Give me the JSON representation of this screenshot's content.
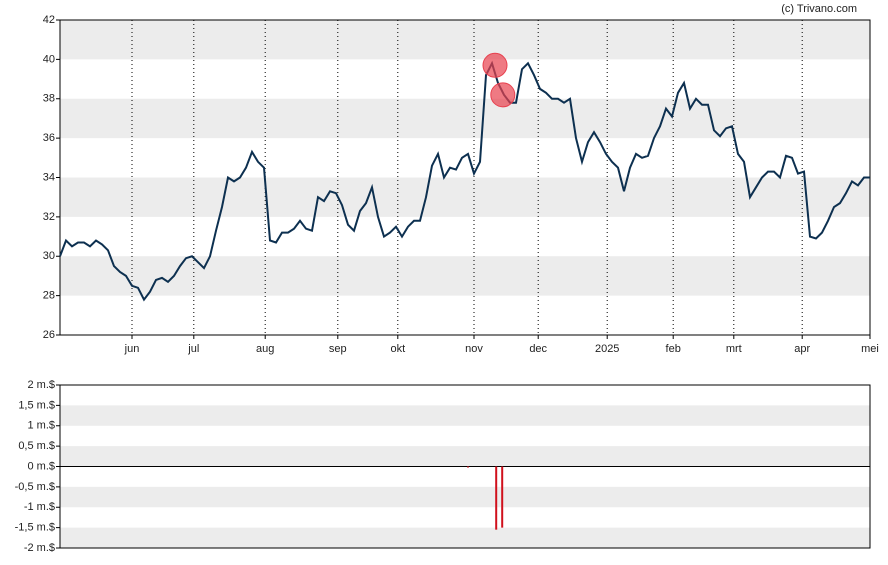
{
  "credit": "(c) Trivano.com",
  "chart_data": [
    {
      "type": "line",
      "color": "#0d3050",
      "xlim": [
        0,
        135
      ],
      "xticks": [
        {
          "value": 12,
          "label": "jun"
        },
        {
          "value": 22.3,
          "label": "jul"
        },
        {
          "value": 34.2,
          "label": "aug"
        },
        {
          "value": 46.3,
          "label": "sep"
        },
        {
          "value": 56.3,
          "label": "okt"
        },
        {
          "value": 69,
          "label": "nov"
        },
        {
          "value": 79.7,
          "label": "dec"
        },
        {
          "value": 91.2,
          "label": "2025"
        },
        {
          "value": 102.2,
          "label": "feb"
        },
        {
          "value": 112.3,
          "label": "mrt"
        },
        {
          "value": 123.7,
          "label": "apr"
        },
        {
          "value": 135,
          "label": "mei"
        }
      ],
      "ylim": [
        26,
        42
      ],
      "yticks": [
        26,
        28,
        30,
        32,
        34,
        36,
        38,
        40,
        42
      ],
      "values": [
        30.0,
        30.8,
        30.5,
        30.7,
        30.7,
        30.5,
        30.8,
        30.6,
        30.3,
        29.5,
        29.2,
        29.0,
        28.5,
        28.4,
        27.8,
        28.2,
        28.8,
        28.9,
        28.7,
        29.0,
        29.5,
        29.9,
        30.0,
        29.7,
        29.4,
        30.0,
        31.3,
        32.5,
        34.0,
        33.8,
        34.0,
        34.5,
        35.3,
        34.8,
        34.5,
        30.8,
        30.7,
        31.2,
        31.2,
        31.4,
        31.8,
        31.4,
        31.3,
        33.0,
        32.8,
        33.3,
        33.2,
        32.6,
        31.6,
        31.3,
        32.3,
        32.7,
        33.5,
        32.0,
        31.0,
        31.2,
        31.5,
        31.0,
        31.5,
        31.8,
        31.8,
        33.0,
        34.6,
        35.2,
        34.0,
        34.5,
        34.4,
        35.0,
        35.2,
        34.2,
        34.8,
        39.2,
        39.8,
        38.8,
        38.2,
        37.8,
        37.8,
        39.5,
        39.8,
        39.2,
        38.5,
        38.3,
        38.0,
        38.0,
        37.8,
        38.0,
        36.0,
        34.8,
        35.8,
        36.3,
        35.8,
        35.2,
        34.8,
        34.5,
        33.3,
        34.5,
        35.2,
        35.0,
        35.1,
        36.0,
        36.6,
        37.5,
        37.1,
        38.3,
        38.8,
        37.5,
        38.0,
        37.7,
        37.7,
        36.4,
        36.1,
        36.5,
        36.6,
        35.2,
        34.8,
        33.0,
        33.5,
        34.0,
        34.3,
        34.3,
        34.0,
        35.1,
        35.0,
        34.2,
        34.3,
        31.0,
        30.9,
        31.2,
        31.8,
        32.5,
        32.7,
        33.2,
        33.8,
        33.6,
        34.0,
        34.0
      ],
      "markers": {
        "color": "#e8414f",
        "x": [
          72.5,
          73.8
        ],
        "values": [
          39.7,
          38.2
        ]
      }
    },
    {
      "type": "bar",
      "color": "#d0101c",
      "xlim": [
        0,
        135
      ],
      "ylim": [
        -2,
        2
      ],
      "yticks": [
        {
          "value": -2,
          "label": "-2 m.$"
        },
        {
          "value": -1.5,
          "label": "-1,5 m.$"
        },
        {
          "value": -1,
          "label": "-1 m.$"
        },
        {
          "value": -0.5,
          "label": "-0,5 m.$"
        },
        {
          "value": 0,
          "label": "0 m.$"
        },
        {
          "value": 0.5,
          "label": "0,5 m.$"
        },
        {
          "value": 1,
          "label": "1 m.$"
        },
        {
          "value": 1.5,
          "label": "1,5 m.$"
        },
        {
          "value": 2,
          "label": "2 m.$"
        }
      ],
      "x": [
        68,
        72.7,
        73.7
      ],
      "values": [
        -0.02,
        -1.55,
        -1.5
      ]
    }
  ]
}
